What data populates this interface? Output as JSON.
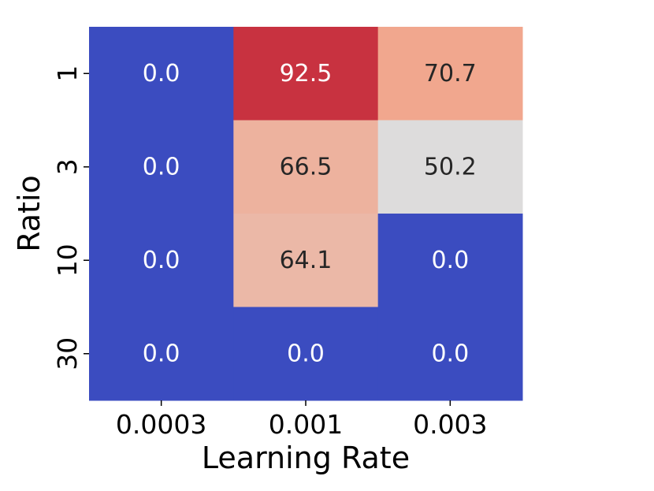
{
  "chart_data": {
    "type": "heatmap",
    "title": "",
    "xlabel": "Learning Rate",
    "ylabel": "Ratio",
    "x_categories": [
      "0.0003",
      "0.001",
      "0.003"
    ],
    "y_categories": [
      "1",
      "3",
      "10",
      "30"
    ],
    "values": [
      [
        0.0,
        92.5,
        70.7
      ],
      [
        0.0,
        66.5,
        50.2
      ],
      [
        0.0,
        64.1,
        0.0
      ],
      [
        0.0,
        0.0,
        0.0
      ]
    ],
    "value_labels": [
      [
        "0.0",
        "92.5",
        "70.7"
      ],
      [
        "0.0",
        "66.5",
        "50.2"
      ],
      [
        "0.0",
        "64.1",
        "0.0"
      ],
      [
        "0.0",
        "0.0",
        "0.0"
      ]
    ],
    "colormap": "coolwarm",
    "value_range": [
      0,
      100
    ],
    "colorbar": false,
    "grid": false
  }
}
